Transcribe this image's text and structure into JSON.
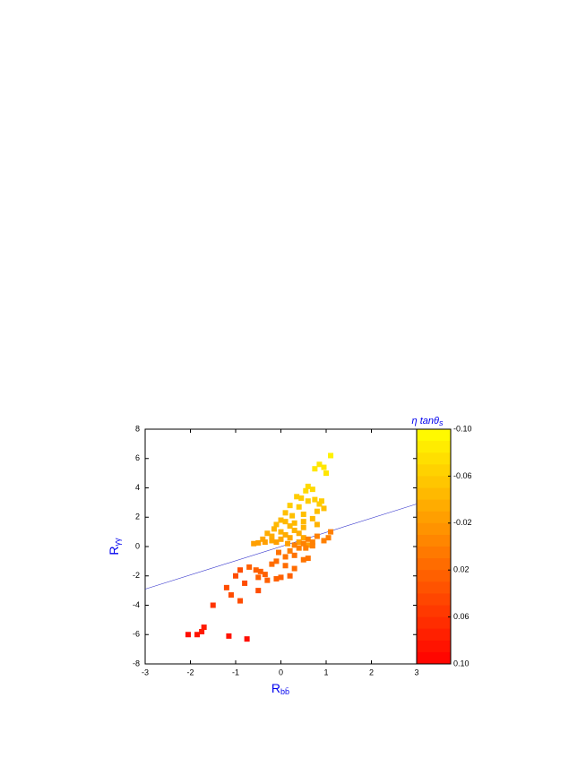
{
  "chart_data": {
    "type": "scatter",
    "x_label": "R",
    "x_label_sub": "bb̄",
    "y_label": "R",
    "y_label_sub": "γγ",
    "colorbar_label": "η tanθ",
    "colorbar_label_sub": "s",
    "xlim": [
      -3,
      3
    ],
    "xticks": [
      -3,
      -2,
      -1,
      0,
      1,
      2,
      3
    ],
    "ylim": [
      -8,
      8
    ],
    "yticks": [
      -8,
      -6,
      -4,
      -2,
      0,
      2,
      4,
      6,
      8
    ],
    "zlim": [
      -0.1,
      0.1
    ],
    "zticks": [
      {
        "value": -0.1,
        "label": "-0.10"
      },
      -0.06,
      -0.02,
      0.02,
      0.06,
      {
        "value": 0.1,
        "label": "0.10"
      }
    ],
    "colormap": [
      "#ffff00",
      "#ff0000"
    ],
    "line": {
      "color": "#3333cc",
      "x": [
        -3,
        3
      ],
      "values": [
        -2.9,
        2.9
      ]
    },
    "series": [
      {
        "x": [
          1.1,
          0.85,
          0.95,
          0.75,
          1.0,
          0.6,
          0.55,
          0.7,
          0.35,
          0.45,
          0.6,
          0.2,
          0.4,
          0.75,
          0.85,
          0.9,
          0.1,
          0.25,
          0.5,
          0.8,
          0.95,
          0,
          0.1,
          0.3,
          0.5,
          0.7,
          -0.1,
          0.2,
          -0.15,
          0,
          0.3,
          0.5,
          0.8,
          -0.3,
          -0.2,
          0.1,
          0.4,
          -0.4,
          -0.2,
          0,
          0.2,
          0.5,
          -0.6,
          -0.5,
          -0.35,
          -0.1,
          0.15,
          0.4,
          0.6,
          1.1,
          1.05,
          0.95,
          0.8,
          0.7,
          0.6,
          0.5,
          0.4,
          0.3,
          0.2,
          0.7,
          0.55,
          0.6,
          0.5,
          0.3,
          0.1,
          -0.05,
          0.1,
          0.3,
          -0.1,
          -0.2,
          0,
          -0.1,
          0.2,
          -0.3,
          -0.45,
          -0.55,
          -0.7,
          -0.5,
          -0.35,
          -0.9,
          -1.0,
          -0.8,
          -1.2,
          -1.1,
          -0.5,
          -0.9,
          -1.5,
          -1.7,
          -1.75,
          -1.85,
          -2.05,
          -1.15,
          -0.75
        ],
        "values": [
          6.2,
          5.6,
          5.4,
          5.3,
          5.0,
          4.1,
          3.8,
          3.9,
          3.4,
          3.3,
          3.1,
          2.8,
          2.7,
          3.2,
          2.9,
          3.1,
          2.3,
          2.1,
          2.2,
          2.4,
          2.6,
          1.8,
          1.7,
          1.6,
          1.7,
          1.9,
          1.5,
          1.4,
          1.2,
          1.0,
          1.1,
          1.3,
          1.5,
          0.9,
          0.7,
          0.8,
          0.9,
          0.5,
          0.4,
          0.5,
          0.6,
          0.6,
          0.2,
          0.25,
          0.3,
          0.3,
          0.2,
          0.3,
          0.1,
          1.0,
          0.6,
          0.4,
          0.7,
          0.3,
          0.5,
          0.2,
          -0.1,
          0.1,
          -0.3,
          0.05,
          -0.1,
          -0.8,
          -0.9,
          -0.6,
          -0.7,
          -0.4,
          -1.3,
          -1.5,
          -1.0,
          -1.2,
          -2.1,
          -2.2,
          -2.0,
          -2.3,
          -1.7,
          -1.6,
          -1.4,
          -2.1,
          -1.9,
          -1.6,
          -2.0,
          -2.5,
          -2.8,
          -3.3,
          -3.0,
          -3.7,
          -4.0,
          -5.5,
          -5.8,
          -6.0,
          -6.0,
          -6.1,
          -6.3
        ],
        "z": [
          -0.09,
          -0.08,
          -0.08,
          -0.08,
          -0.08,
          -0.07,
          -0.07,
          -0.07,
          -0.06,
          -0.06,
          -0.06,
          -0.06,
          -0.06,
          -0.06,
          -0.06,
          -0.06,
          -0.05,
          -0.05,
          -0.05,
          -0.05,
          -0.05,
          -0.045,
          -0.045,
          -0.045,
          -0.045,
          -0.045,
          -0.045,
          -0.045,
          -0.04,
          -0.04,
          -0.04,
          -0.04,
          -0.04,
          -0.035,
          -0.035,
          -0.035,
          -0.035,
          -0.03,
          -0.03,
          -0.03,
          -0.03,
          -0.03,
          -0.025,
          -0.025,
          -0.025,
          -0.025,
          -0.025,
          -0.025,
          -0.025,
          0,
          0,
          0,
          0,
          0,
          0,
          0,
          0,
          0,
          0,
          0,
          0,
          0.01,
          0.01,
          0.01,
          0.01,
          0.01,
          0.015,
          0.015,
          0.015,
          0.015,
          0.025,
          0.025,
          0.025,
          0.025,
          0.025,
          0.025,
          0.025,
          0.025,
          0.025,
          0.04,
          0.04,
          0.04,
          0.04,
          0.04,
          0.04,
          0.04,
          0.06,
          0.08,
          0.08,
          0.085,
          0.09,
          0.085,
          0.09
        ]
      }
    ]
  }
}
